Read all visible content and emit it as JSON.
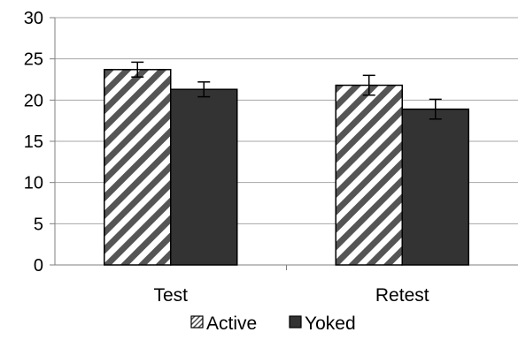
{
  "chart_data": {
    "type": "bar",
    "categories": [
      "Test",
      "Retest"
    ],
    "series": [
      {
        "name": "Active",
        "values": [
          23.7,
          21.8
        ],
        "errors": [
          0.9,
          1.2
        ],
        "fill": "hatched"
      },
      {
        "name": "Yoked",
        "values": [
          21.3,
          18.9
        ],
        "errors": [
          0.9,
          1.2
        ],
        "fill": "#333333"
      }
    ],
    "ylim": [
      0,
      30
    ],
    "yticks": [
      "0",
      "5",
      "10",
      "15",
      "20",
      "25",
      "30"
    ],
    "grid": true,
    "legend_position": "bottom",
    "colors": {
      "bar_stroke": "#000000",
      "hatch": "#555555",
      "solid": "#333333",
      "grid": "#a6a6a6"
    }
  }
}
